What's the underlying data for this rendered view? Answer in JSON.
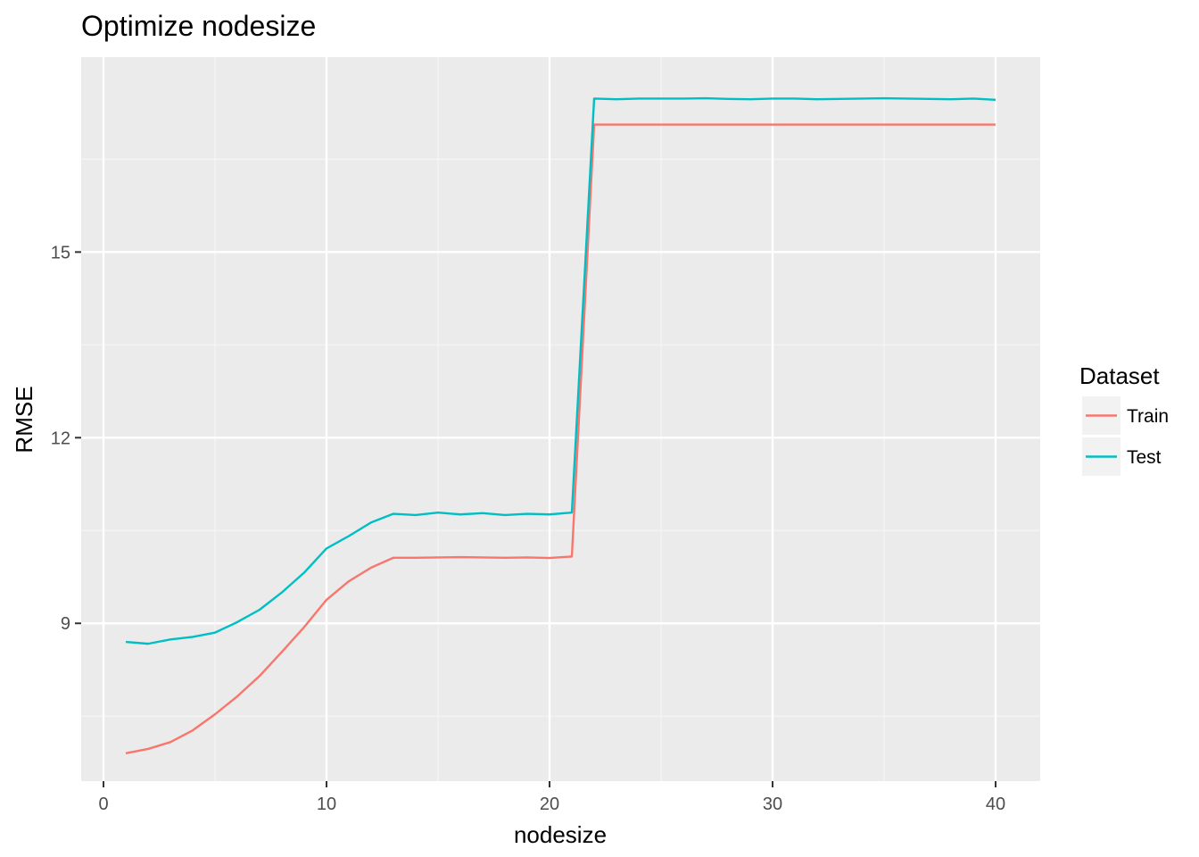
{
  "chart_data": {
    "type": "line",
    "title": "Optimize nodesize",
    "xlabel": "nodesize",
    "ylabel": "RMSE",
    "xlim": [
      -1,
      42
    ],
    "ylim": [
      6.45,
      18.15
    ],
    "x_ticks": [
      0,
      10,
      20,
      30,
      40
    ],
    "x_tick_labels": [
      "0",
      "10",
      "20",
      "30",
      "40"
    ],
    "x_minor_ticks": [
      5,
      15,
      25,
      35
    ],
    "y_ticks": [
      9,
      12,
      15
    ],
    "y_tick_labels": [
      "9",
      "12",
      "15"
    ],
    "y_minor_ticks": [
      7.5,
      10.5,
      13.5,
      16.5
    ],
    "grid": true,
    "legend": {
      "title": "Dataset",
      "position": "right",
      "entries": [
        "Train",
        "Test"
      ]
    },
    "x": [
      1,
      2,
      3,
      4,
      5,
      6,
      7,
      8,
      9,
      10,
      11,
      12,
      13,
      14,
      15,
      16,
      17,
      18,
      19,
      20,
      21,
      22,
      23,
      24,
      25,
      26,
      27,
      28,
      29,
      30,
      31,
      32,
      33,
      34,
      35,
      36,
      37,
      38,
      39,
      40
    ],
    "series": [
      {
        "name": "Train",
        "color": "#F8766D",
        "values": [
          6.9,
          6.97,
          7.08,
          7.27,
          7.53,
          7.82,
          8.15,
          8.54,
          8.94,
          9.38,
          9.68,
          9.9,
          10.06,
          10.06,
          10.065,
          10.07,
          10.065,
          10.06,
          10.065,
          10.055,
          10.08,
          17.06,
          17.06,
          17.06,
          17.06,
          17.06,
          17.06,
          17.06,
          17.06,
          17.06,
          17.06,
          17.06,
          17.06,
          17.06,
          17.06,
          17.06,
          17.06,
          17.06,
          17.06,
          17.06
        ]
      },
      {
        "name": "Test",
        "color": "#00BFC4",
        "values": [
          8.7,
          8.67,
          8.74,
          8.78,
          8.85,
          9.02,
          9.22,
          9.5,
          9.82,
          10.21,
          10.41,
          10.63,
          10.77,
          10.75,
          10.79,
          10.76,
          10.78,
          10.75,
          10.77,
          10.76,
          10.79,
          17.48,
          17.47,
          17.48,
          17.48,
          17.48,
          17.485,
          17.475,
          17.47,
          17.48,
          17.48,
          17.47,
          17.475,
          17.48,
          17.485,
          17.48,
          17.475,
          17.47,
          17.48,
          17.46
        ]
      }
    ]
  }
}
